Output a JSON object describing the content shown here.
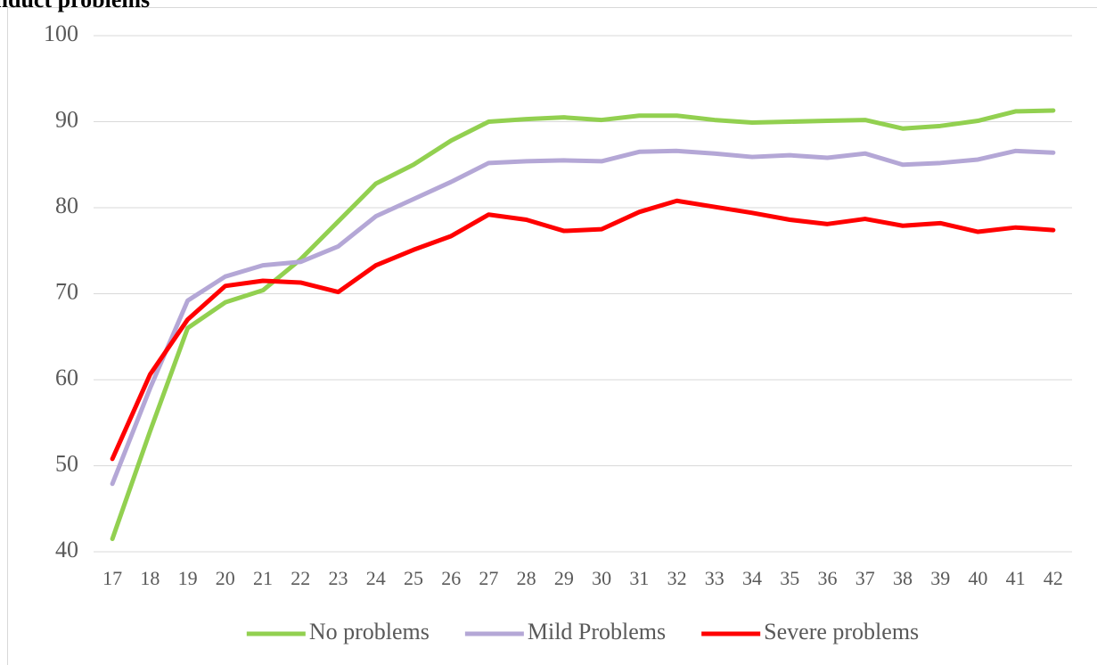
{
  "chart_data": {
    "type": "line",
    "title": "conduct problems",
    "categories": [
      "17",
      "18",
      "19",
      "20",
      "21",
      "22",
      "23",
      "24",
      "25",
      "26",
      "27",
      "28",
      "29",
      "30",
      "31",
      "32",
      "33",
      "34",
      "35",
      "36",
      "37",
      "38",
      "39",
      "40",
      "41",
      "42"
    ],
    "series": [
      {
        "name": "No problems",
        "color": "#92d050",
        "values": [
          41.5,
          54,
          66,
          69,
          70.4,
          74,
          78.4,
          82.8,
          85,
          87.8,
          90,
          90.3,
          90.5,
          90.2,
          90.7,
          90.7,
          90.2,
          89.9,
          90,
          90.1,
          90.2,
          89.2,
          89.5,
          90.1,
          91.2,
          91.3
        ]
      },
      {
        "name": "Mild Problems",
        "color": "#b4a7d6",
        "values": [
          47.9,
          59,
          69.2,
          72,
          73.3,
          73.7,
          75.5,
          79,
          81,
          83,
          85.2,
          85.4,
          85.5,
          85.4,
          86.5,
          86.6,
          86.3,
          85.9,
          86.1,
          85.8,
          86.3,
          85,
          85.2,
          85.6,
          86.6,
          86.4
        ]
      },
      {
        "name": "Severe problems",
        "color": "#ff0000",
        "values": [
          50.8,
          60.6,
          67,
          70.9,
          71.5,
          71.3,
          70.2,
          73.3,
          75.1,
          76.7,
          79.2,
          78.6,
          77.3,
          77.5,
          79.5,
          80.8,
          80.1,
          79.4,
          78.6,
          78.1,
          78.7,
          77.9,
          78.2,
          77.2,
          77.7,
          77.4
        ]
      }
    ],
    "ylim": [
      40,
      100
    ],
    "yticks": [
      40,
      50,
      60,
      70,
      80,
      90,
      100
    ],
    "grid": true,
    "legend": "bottom"
  }
}
